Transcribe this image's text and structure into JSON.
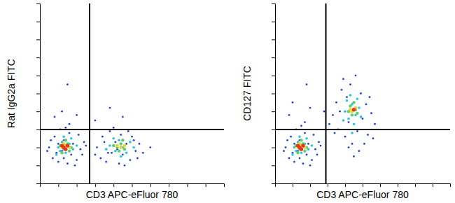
{
  "chart_data": [
    {
      "type": "scatter",
      "xlabel": "CD3 APC-eFluor 780",
      "ylabel": "Rat IgG2a FITC",
      "xlim": [
        0,
        100
      ],
      "ylim": [
        0,
        100
      ],
      "xticks": [
        10,
        20,
        30,
        40,
        50,
        60,
        70,
        80,
        90
      ],
      "yticks": [
        10,
        20,
        30,
        40,
        50,
        60,
        70,
        80,
        90
      ],
      "tick_labels": false,
      "quadrant": {
        "x": 27,
        "y": 30
      },
      "series": [
        {
          "color": "#1f3fd6",
          "x": [
            5,
            7,
            8,
            10,
            11,
            12,
            13,
            15,
            16,
            17,
            18,
            20,
            21,
            22,
            24,
            6,
            9,
            14,
            19,
            23,
            4,
            25,
            13,
            16,
            10,
            31,
            33,
            34,
            36,
            38,
            39,
            41,
            43,
            44,
            45,
            47,
            49,
            50,
            52,
            54,
            56,
            35,
            40,
            46,
            48,
            53,
            42,
            37,
            51,
            30,
            60,
            12,
            20,
            38,
            45,
            8,
            15,
            30
          ],
          "values": [
            20,
            14,
            26,
            12,
            30,
            18,
            24,
            11,
            28,
            16,
            22,
            13,
            27,
            19,
            23,
            24,
            17,
            31,
            10,
            16,
            18,
            21,
            14,
            33,
            22,
            20,
            14,
            26,
            12,
            29,
            17,
            23,
            11,
            27,
            16,
            22,
            13,
            26,
            18,
            22,
            17,
            23,
            31,
            10,
            29,
            14,
            19,
            17,
            24,
            16,
            20,
            40,
            38,
            42,
            37,
            37,
            55,
            35
          ]
        },
        {
          "color": "#2fc1e0",
          "x": [
            10,
            12,
            14,
            16,
            18,
            13,
            9,
            17,
            20,
            11,
            38,
            41,
            43,
            45,
            47,
            49,
            40,
            44,
            51,
            36
          ],
          "values": [
            20,
            23,
            17,
            22,
            19,
            26,
            16,
            25,
            21,
            18,
            21,
            18,
            24,
            20,
            17,
            23,
            25,
            15,
            20,
            19
          ]
        },
        {
          "color": "#5fcf6a",
          "x": [
            11,
            13,
            15,
            17,
            12,
            14,
            16,
            40,
            42,
            44,
            46,
            43,
            45
          ],
          "values": [
            21,
            19,
            22,
            20,
            17,
            24,
            18,
            21,
            20,
            22,
            19,
            18,
            24
          ]
        },
        {
          "color": "#e8d23a",
          "x": [
            12,
            14,
            16,
            13,
            42,
            44,
            46
          ],
          "values": [
            20,
            21,
            20,
            22,
            21,
            20,
            21
          ]
        },
        {
          "color": "#e8331f",
          "x": [
            13,
            15,
            14,
            12
          ],
          "values": [
            20,
            21,
            19,
            21
          ]
        }
      ]
    },
    {
      "type": "scatter",
      "xlabel": "CD3 APC-eFluor 780",
      "ylabel": "CD127 FITC",
      "xlim": [
        0,
        100
      ],
      "ylim": [
        0,
        100
      ],
      "xticks": [
        10,
        20,
        30,
        40,
        50,
        60,
        70,
        80,
        90
      ],
      "yticks": [
        10,
        20,
        30,
        40,
        50,
        60,
        70,
        80,
        90
      ],
      "tick_labels": false,
      "quadrant": {
        "x": 29,
        "y": 30
      },
      "series": [
        {
          "color": "#1f3fd6",
          "x": [
            6,
            8,
            9,
            11,
            12,
            13,
            14,
            16,
            17,
            18,
            19,
            21,
            22,
            23,
            25,
            7,
            10,
            15,
            20,
            24,
            5,
            26,
            14,
            17,
            11,
            33,
            35,
            36,
            38,
            40,
            41,
            42,
            43,
            44,
            46,
            47,
            49,
            50,
            52,
            53,
            55,
            57,
            37,
            39,
            48,
            51,
            45,
            42,
            54,
            34,
            31,
            46,
            56,
            10,
            20,
            8,
            28,
            18
          ],
          "values": [
            20,
            14,
            26,
            12,
            30,
            18,
            24,
            11,
            28,
            16,
            22,
            13,
            27,
            19,
            23,
            24,
            17,
            32,
            10,
            16,
            18,
            21,
            14,
            34,
            22,
            38,
            45,
            30,
            52,
            26,
            48,
            34,
            55,
            22,
            42,
            29,
            50,
            36,
            44,
            27,
            39,
            33,
            40,
            58,
            18,
            22,
            15,
            20,
            48,
            28,
            33,
            60,
            25,
            45,
            42,
            38,
            40,
            55
          ]
        },
        {
          "color": "#2fc1e0",
          "x": [
            11,
            13,
            15,
            17,
            19,
            14,
            10,
            18,
            21,
            12,
            40,
            42,
            44,
            46,
            48,
            41,
            45,
            49,
            43,
            47,
            39,
            44
          ],
          "values": [
            20,
            23,
            17,
            22,
            19,
            26,
            16,
            25,
            21,
            18,
            40,
            36,
            44,
            38,
            42,
            46,
            33,
            37,
            49,
            47,
            35,
            28
          ]
        },
        {
          "color": "#5fcf6a",
          "x": [
            12,
            14,
            16,
            18,
            13,
            15,
            17,
            42,
            44,
            46,
            43,
            45,
            47
          ],
          "values": [
            21,
            19,
            22,
            20,
            17,
            24,
            18,
            40,
            38,
            41,
            43,
            45,
            39
          ]
        },
        {
          "color": "#e8d23a",
          "x": [
            13,
            15,
            17,
            14,
            44,
            46,
            43
          ],
          "values": [
            20,
            21,
            20,
            22,
            40,
            42,
            41
          ]
        },
        {
          "color": "#e8331f",
          "x": [
            14,
            16,
            15,
            13,
            45
          ],
          "values": [
            20,
            21,
            19,
            21,
            41
          ]
        }
      ]
    }
  ]
}
